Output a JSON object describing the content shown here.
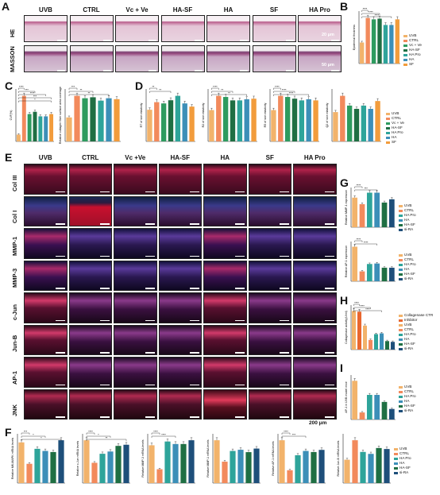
{
  "panels": {
    "A": {
      "letter": "A",
      "columns": [
        "UVB",
        "CTRL",
        "Vc + Ve",
        "HA-SF",
        "HA",
        "SF",
        "HA Pro"
      ],
      "rows": [
        "HE",
        "MASSON"
      ],
      "scale_labels": [
        "20 μm",
        "50 μm"
      ]
    },
    "B": {
      "letter": "B"
    },
    "C": {
      "letter": "C"
    },
    "D": {
      "letter": "D"
    },
    "E": {
      "letter": "E",
      "columns": [
        "UVB",
        "CTRL",
        "Vc +Ve",
        "HA-SF",
        "HA",
        "SF",
        "HA Pro"
      ],
      "rows": [
        "Col III",
        "Col I",
        "MMP-1",
        "MMP-3",
        "c-Jun",
        "Jun-B",
        "AP-1",
        "JNK"
      ],
      "scale_label": "200 μm"
    },
    "F": {
      "letter": "F"
    },
    "G": {
      "letter": "G"
    },
    "H": {
      "letter": "H"
    },
    "I": {
      "letter": "I"
    }
  },
  "colors": {
    "UVB": "#f2b36b",
    "CTRL": "#f28a5c",
    "VcVe": "#2e9b5f",
    "HASF": "#1f6f43",
    "HAPro": "#2ea49a",
    "HA": "#3c8fb8",
    "SF": "#f29c3c",
    "si-RA": "#1e4f7a",
    "Inhibitor": "#e8662f"
  },
  "chart_data": [
    {
      "id": "B",
      "type": "bar",
      "categories": [
        "UVB",
        "CTRL",
        "Vc+Ve",
        "HA-SF",
        "HA Pro",
        "HA",
        "SF"
      ],
      "values": [
        30,
        65,
        63,
        64,
        55,
        55,
        63
      ],
      "ylabel": "Epidermal thickness",
      "significance": [
        "****",
        "****",
        "****"
      ],
      "legend": [
        "UVB",
        "CTRL",
        "Vc + Ve",
        "HA-SF",
        "HA Pro",
        "HA",
        "SF"
      ]
    },
    {
      "id": "C1",
      "type": "bar",
      "categories": [
        "UVB",
        "CTRL",
        "Vc+Ve",
        "HA-SF",
        "HA Pro",
        "HA",
        "SF"
      ],
      "values": [
        0.15,
        1.0,
        0.6,
        0.65,
        0.55,
        0.55,
        0.6
      ],
      "ylabel": "CVF(%)",
      "significance": [
        "****",
        "***",
        "****",
        "***",
        "*"
      ]
    },
    {
      "id": "C2",
      "type": "bar",
      "categories": [
        "UVB",
        "CTRL",
        "Vc+Ve",
        "HA-SF",
        "HA Pro",
        "HA",
        "SF"
      ],
      "values": [
        0.5,
        0.95,
        0.9,
        0.92,
        0.85,
        0.9,
        0.88
      ],
      "ylabel": "Relative collagen fiber surface area coverage",
      "significance": [
        "***",
        "**",
        "**"
      ]
    },
    {
      "id": "D1",
      "type": "bar",
      "categories": [
        "UVB",
        "CTRL",
        "Vc+Ve",
        "HA-SF",
        "HA Pro",
        "HA",
        "SF"
      ],
      "values": [
        0.5,
        0.62,
        0.6,
        0.65,
        0.72,
        0.6,
        0.55
      ],
      "ylabel": "R7 of skin elasticity",
      "significance": [
        "**",
        "**"
      ]
    },
    {
      "id": "D2",
      "type": "bar",
      "categories": [
        "UVB",
        "CTRL",
        "Vc+Ve",
        "HA-SF",
        "HA Pro",
        "HA",
        "SF"
      ],
      "values": [
        0.55,
        0.8,
        0.78,
        0.72,
        0.72,
        0.74,
        0.75
      ],
      "ylabel": "R2 of skin elasticity",
      "significance": [
        "****",
        "**",
        "**"
      ]
    },
    {
      "id": "D3",
      "type": "bar",
      "categories": [
        "UVB",
        "CTRL",
        "Vc+Ve",
        "HA-SF",
        "HA Pro",
        "HA",
        "SF"
      ],
      "values": [
        0.55,
        0.8,
        0.78,
        0.75,
        0.72,
        0.74,
        0.72
      ],
      "ylabel": "R5 of skin elasticity",
      "significance": [
        "****",
        "****",
        "****"
      ]
    },
    {
      "id": "D4",
      "type": "bar",
      "categories": [
        "UVB",
        "CTRL",
        "Vc+Ve",
        "HA-SF",
        "HA Pro",
        "HA",
        "SF"
      ],
      "values": [
        0.45,
        0.7,
        0.55,
        0.5,
        0.55,
        0.5,
        0.62
      ],
      "ylabel": "Q2 of skin elasticity",
      "significance": [],
      "legend": [
        "UVB",
        "CTRL",
        "Vc + Ve",
        "HA-SF",
        "HA Pro",
        "HA",
        "SF"
      ]
    },
    {
      "id": "G1",
      "type": "bar",
      "categories": [
        "UVB",
        "CTRL",
        "HA Pro",
        "HA",
        "HA-SF",
        "si-RA"
      ],
      "values": [
        0.9,
        0.7,
        1.05,
        1.05,
        0.75,
        0.85
      ],
      "ylabel": "Relative MMP-1 expression",
      "significance": [
        "****",
        "***"
      ],
      "legend": [
        "UVB",
        "CTRL",
        "HA Pro",
        "HA",
        "HA-SF",
        "si-RA"
      ]
    },
    {
      "id": "G2",
      "type": "bar",
      "categories": [
        "UVB",
        "CTRL",
        "HA Pro",
        "HA",
        "HA-SF",
        "si-RA"
      ],
      "values": [
        1.4,
        0.4,
        0.7,
        0.72,
        0.55,
        0.55
      ],
      "ylabel": "Relative AP-1 expression",
      "significance": [
        "****",
        "****"
      ],
      "legend": [
        "UVB",
        "CTRL",
        "HA Pro",
        "HA",
        "HA-SF",
        "si-RA"
      ]
    },
    {
      "id": "H",
      "type": "bar",
      "categories": [
        "Collagenase CTR",
        "Inhibitor",
        "UVB",
        "CTRL",
        "HA Pro",
        "HA",
        "HA-SF",
        "si-RA"
      ],
      "values": [
        1.0,
        0.98,
        0.62,
        0.25,
        0.4,
        0.42,
        0.22,
        0.2
      ],
      "ylabel": "Collagenase activity(U/ml)",
      "significance": [
        "****",
        "****",
        "****"
      ],
      "legend": [
        "Collagenase CTR",
        "Inhibitor",
        "UVB",
        "CTRL",
        "HA Pro",
        "HA",
        "HA-SF",
        "si-RA"
      ]
    },
    {
      "id": "I",
      "type": "bar",
      "categories": [
        "UVB",
        "CTRL",
        "HA Pro",
        "HA",
        "HA-SF",
        "si-RA"
      ],
      "values": [
        0.55,
        0.1,
        0.35,
        0.35,
        0.25,
        0.15
      ],
      "ylabel": "AP-1 in UVB model mice",
      "significance": [],
      "legend": [
        "UVB",
        "CTRL",
        "HA Pro",
        "HA",
        "HA-SF",
        "si-RA"
      ]
    },
    {
      "id": "F1",
      "type": "bar",
      "categories": [
        "UVB",
        "CTRL",
        "HA Pro",
        "HA",
        "HA-SF",
        "si-RA"
      ],
      "values": [
        1.9,
        0.9,
        1.6,
        1.5,
        1.45,
        2.0
      ],
      "ylabel": "Relative MK-MAPK mRNA levels",
      "significance": [
        "***",
        "*",
        "*"
      ]
    },
    {
      "id": "F2",
      "type": "bar",
      "categories": [
        "UVB",
        "CTRL",
        "HA Pro",
        "HA",
        "HA-SF",
        "si-RA"
      ],
      "values": [
        1.9,
        0.9,
        1.3,
        1.4,
        1.65,
        1.7
      ],
      "ylabel": "Relative c-Jun mRNA levels",
      "significance": [
        "****",
        "*",
        "**"
      ]
    },
    {
      "id": "F3",
      "type": "bar",
      "categories": [
        "UVB",
        "CTRL",
        "HA Pro",
        "HA",
        "HA-SF",
        "si-RA"
      ],
      "values": [
        1.5,
        0.55,
        1.65,
        1.55,
        1.55,
        1.7
      ],
      "ylabel": "Relative MMP-3 mRNA levels",
      "significance": [
        "****",
        "****"
      ]
    },
    {
      "id": "F4",
      "type": "bar",
      "categories": [
        "UVB",
        "CTRL",
        "HA Pro",
        "HA",
        "HA-SF",
        "si-RA"
      ],
      "values": [
        1.8,
        0.9,
        1.35,
        1.4,
        1.3,
        1.45
      ],
      "ylabel": "Relative MMP-1 mRNA levels",
      "significance": []
    },
    {
      "id": "F5",
      "type": "bar",
      "categories": [
        "UVB",
        "CTRL",
        "HA Pro",
        "HA",
        "HA-SF",
        "si-RA"
      ],
      "values": [
        2.0,
        0.6,
        1.3,
        1.5,
        1.45,
        1.55
      ],
      "ylabel": "Relative AP-1 mRNA levels",
      "significance": [
        "****",
        "***"
      ]
    },
    {
      "id": "F6",
      "type": "bar",
      "categories": [
        "UVB",
        "CTRL",
        "HA Pro",
        "HA",
        "HA-SF",
        "si-RA"
      ],
      "values": [
        1.2,
        2.2,
        1.6,
        1.5,
        1.8,
        1.75
      ],
      "ylabel": "Relative Jun-B mRNA levels",
      "significance": [],
      "legend": [
        "UVB",
        "CTRL",
        "HA Pro",
        "HA",
        "HA-SF",
        "si-RA"
      ]
    }
  ]
}
